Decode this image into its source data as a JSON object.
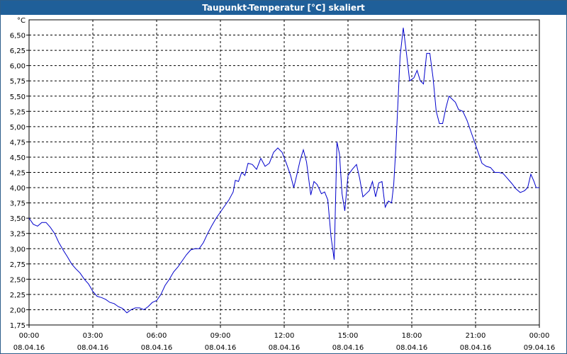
{
  "window": {
    "title": "Taupunkt-Temperatur [°C] skaliert"
  },
  "chart_data": {
    "type": "line",
    "title": "Taupunkt-Temperatur [°C] skaliert",
    "y_unit": "°C",
    "ylim": [
      1.75,
      6.75
    ],
    "y_ticks": [
      "6,50",
      "6,25",
      "6,00",
      "5,75",
      "5,50",
      "5,25",
      "5,00",
      "4,75",
      "4,50",
      "4,25",
      "4,00",
      "3,75",
      "3,50",
      "3,25",
      "3,00",
      "2,75",
      "2,50",
      "2,25",
      "2,00",
      "1,75"
    ],
    "x_range_hours": [
      0,
      24
    ],
    "x_ticks": [
      {
        "time": "00:00",
        "date": "08.04.16"
      },
      {
        "time": "03:00",
        "date": "08.04.16"
      },
      {
        "time": "06:00",
        "date": "08.04.16"
      },
      {
        "time": "09:00",
        "date": "08.04.16"
      },
      {
        "time": "12:00",
        "date": "08.04.16"
      },
      {
        "time": "15:00",
        "date": "08.04.16"
      },
      {
        "time": "18:00",
        "date": "08.04.16"
      },
      {
        "time": "21:00",
        "date": "08.04.16"
      },
      {
        "time": "00:00",
        "date": "09.04.16"
      }
    ],
    "grid": true,
    "series": [
      {
        "color": "#0000cc",
        "points": [
          [
            0.0,
            3.5
          ],
          [
            0.2,
            3.4
          ],
          [
            0.4,
            3.37
          ],
          [
            0.6,
            3.43
          ],
          [
            0.8,
            3.43
          ],
          [
            1.0,
            3.35
          ],
          [
            1.2,
            3.25
          ],
          [
            1.4,
            3.1
          ],
          [
            1.6,
            2.98
          ],
          [
            1.8,
            2.87
          ],
          [
            2.0,
            2.75
          ],
          [
            2.2,
            2.67
          ],
          [
            2.4,
            2.6
          ],
          [
            2.6,
            2.5
          ],
          [
            2.8,
            2.42
          ],
          [
            3.0,
            2.3
          ],
          [
            3.2,
            2.22
          ],
          [
            3.4,
            2.2
          ],
          [
            3.6,
            2.17
          ],
          [
            3.8,
            2.12
          ],
          [
            4.0,
            2.1
          ],
          [
            4.2,
            2.05
          ],
          [
            4.4,
            2.02
          ],
          [
            4.6,
            1.95
          ],
          [
            4.8,
            2.0
          ],
          [
            5.0,
            2.03
          ],
          [
            5.2,
            2.03
          ],
          [
            5.4,
            2.0
          ],
          [
            5.6,
            2.05
          ],
          [
            5.8,
            2.12
          ],
          [
            6.0,
            2.15
          ],
          [
            6.2,
            2.25
          ],
          [
            6.4,
            2.4
          ],
          [
            6.6,
            2.5
          ],
          [
            6.8,
            2.62
          ],
          [
            7.0,
            2.7
          ],
          [
            7.2,
            2.8
          ],
          [
            7.4,
            2.9
          ],
          [
            7.6,
            2.98
          ],
          [
            7.8,
            3.0
          ],
          [
            8.0,
            3.0
          ],
          [
            8.2,
            3.1
          ],
          [
            8.4,
            3.25
          ],
          [
            8.6,
            3.38
          ],
          [
            8.8,
            3.5
          ],
          [
            9.0,
            3.6
          ],
          [
            9.2,
            3.7
          ],
          [
            9.4,
            3.8
          ],
          [
            9.6,
            3.93
          ],
          [
            9.7,
            4.12
          ],
          [
            9.85,
            4.1
          ],
          [
            10.0,
            4.25
          ],
          [
            10.15,
            4.2
          ],
          [
            10.3,
            4.4
          ],
          [
            10.5,
            4.38
          ],
          [
            10.7,
            4.3
          ],
          [
            10.9,
            4.48
          ],
          [
            11.1,
            4.35
          ],
          [
            11.3,
            4.4
          ],
          [
            11.5,
            4.58
          ],
          [
            11.7,
            4.65
          ],
          [
            11.9,
            4.58
          ],
          [
            12.1,
            4.4
          ],
          [
            12.3,
            4.2
          ],
          [
            12.45,
            4.0
          ],
          [
            12.6,
            4.22
          ],
          [
            12.75,
            4.45
          ],
          [
            12.9,
            4.62
          ],
          [
            13.05,
            4.42
          ],
          [
            13.25,
            3.88
          ],
          [
            13.4,
            4.1
          ],
          [
            13.55,
            4.05
          ],
          [
            13.75,
            3.9
          ],
          [
            13.9,
            3.93
          ],
          [
            14.05,
            3.8
          ],
          [
            14.2,
            3.2
          ],
          [
            14.35,
            2.82
          ],
          [
            14.48,
            4.75
          ],
          [
            14.6,
            4.55
          ],
          [
            14.72,
            3.9
          ],
          [
            14.85,
            3.62
          ],
          [
            15.0,
            4.2
          ],
          [
            15.2,
            4.3
          ],
          [
            15.4,
            4.38
          ],
          [
            15.55,
            4.15
          ],
          [
            15.7,
            3.85
          ],
          [
            15.85,
            3.9
          ],
          [
            16.0,
            3.95
          ],
          [
            16.15,
            4.1
          ],
          [
            16.3,
            3.85
          ],
          [
            16.45,
            4.08
          ],
          [
            16.6,
            4.1
          ],
          [
            16.75,
            3.68
          ],
          [
            16.9,
            3.78
          ],
          [
            17.05,
            3.75
          ],
          [
            17.15,
            4.05
          ],
          [
            17.25,
            4.65
          ],
          [
            17.35,
            5.4
          ],
          [
            17.45,
            6.15
          ],
          [
            17.6,
            6.62
          ],
          [
            17.75,
            6.2
          ],
          [
            17.9,
            5.75
          ],
          [
            18.1,
            5.8
          ],
          [
            18.25,
            5.92
          ],
          [
            18.4,
            5.75
          ],
          [
            18.55,
            5.7
          ],
          [
            18.7,
            6.2
          ],
          [
            18.85,
            6.2
          ],
          [
            19.0,
            5.8
          ],
          [
            19.15,
            5.25
          ],
          [
            19.3,
            5.05
          ],
          [
            19.45,
            5.05
          ],
          [
            19.6,
            5.3
          ],
          [
            19.75,
            5.5
          ],
          [
            19.9,
            5.45
          ],
          [
            20.05,
            5.4
          ],
          [
            20.2,
            5.28
          ],
          [
            20.4,
            5.25
          ],
          [
            20.6,
            5.1
          ],
          [
            20.8,
            4.9
          ],
          [
            21.0,
            4.7
          ],
          [
            21.15,
            4.55
          ],
          [
            21.3,
            4.4
          ],
          [
            21.5,
            4.35
          ],
          [
            21.7,
            4.33
          ],
          [
            21.9,
            4.25
          ],
          [
            22.1,
            4.25
          ],
          [
            22.3,
            4.23
          ],
          [
            22.5,
            4.15
          ],
          [
            22.7,
            4.07
          ],
          [
            22.9,
            3.98
          ],
          [
            23.1,
            3.92
          ],
          [
            23.3,
            3.95
          ],
          [
            23.45,
            4.0
          ],
          [
            23.6,
            4.22
          ],
          [
            23.75,
            4.1
          ],
          [
            23.85,
            4.0
          ],
          [
            24.0,
            4.0
          ]
        ]
      }
    ]
  }
}
